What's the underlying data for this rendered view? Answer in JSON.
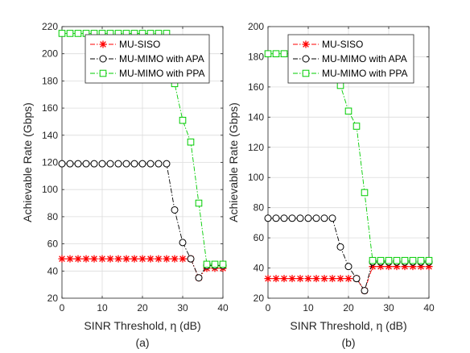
{
  "chart_data": [
    {
      "type": "line",
      "caption": "(a)",
      "xlabel": "SINR Threshold, η (dB)",
      "ylabel": "Achievable Rate (Gbps)",
      "xlim": [
        0,
        40
      ],
      "ylim": [
        20,
        220
      ],
      "xticks": [
        0,
        10,
        20,
        30,
        40
      ],
      "yticks": [
        20,
        40,
        60,
        80,
        100,
        120,
        140,
        160,
        180,
        200,
        220
      ],
      "grid": true,
      "legend_position": "top-right",
      "x": [
        0,
        2,
        4,
        6,
        8,
        10,
        12,
        14,
        16,
        18,
        20,
        22,
        24,
        26,
        28,
        30,
        32,
        34,
        36,
        38,
        40
      ],
      "series": [
        {
          "name": "MU-SISO",
          "color": "#ff0000",
          "marker": "asterisk",
          "dash": "dash-dot",
          "values": [
            49,
            49,
            49,
            49,
            49,
            49,
            49,
            49,
            49,
            49,
            49,
            49,
            49,
            49,
            49,
            49,
            49,
            35,
            42,
            42,
            42
          ]
        },
        {
          "name": "MU-MIMO with APA",
          "color": "#000000",
          "marker": "circle",
          "dash": "dash-dot",
          "values": [
            119,
            119,
            119,
            119,
            119,
            119,
            119,
            119,
            119,
            119,
            119,
            119,
            119,
            119,
            85,
            61,
            49,
            35,
            44,
            44,
            44
          ]
        },
        {
          "name": "MU-MIMO with PPA",
          "color": "#00cc00",
          "marker": "square",
          "dash": "dash-dot",
          "values": [
            215,
            215,
            215,
            215,
            215,
            215,
            215,
            215,
            215,
            215,
            215,
            215,
            215,
            215,
            178,
            151,
            135,
            90,
            45,
            45,
            45
          ]
        }
      ]
    },
    {
      "type": "line",
      "caption": "(b)",
      "xlabel": "SINR Threshold, η (dB)",
      "ylabel": "Achievable Rate (Gbps)",
      "xlim": [
        0,
        40
      ],
      "ylim": [
        20,
        200
      ],
      "xticks": [
        0,
        10,
        20,
        30,
        40
      ],
      "yticks": [
        20,
        40,
        60,
        80,
        100,
        120,
        140,
        160,
        180,
        200
      ],
      "grid": true,
      "legend_position": "top-right",
      "x": [
        0,
        2,
        4,
        6,
        8,
        10,
        12,
        14,
        16,
        18,
        20,
        22,
        24,
        26,
        28,
        30,
        32,
        34,
        36,
        38,
        40
      ],
      "series": [
        {
          "name": "MU-SISO",
          "color": "#ff0000",
          "marker": "asterisk",
          "dash": "dash-dot",
          "values": [
            33,
            33,
            33,
            33,
            33,
            33,
            33,
            33,
            33,
            33,
            33,
            33,
            25,
            41,
            41,
            41,
            41,
            41,
            41,
            41,
            41
          ]
        },
        {
          "name": "MU-MIMO with APA",
          "color": "#000000",
          "marker": "circle",
          "dash": "dash-dot",
          "values": [
            73,
            73,
            73,
            73,
            73,
            73,
            73,
            73,
            73,
            54,
            41,
            33,
            25,
            44,
            44,
            44,
            44,
            44,
            44,
            44,
            44
          ]
        },
        {
          "name": "MU-MIMO with PPA",
          "color": "#00cc00",
          "marker": "square",
          "dash": "dash-dot",
          "values": [
            182,
            182,
            182,
            182,
            182,
            182,
            182,
            182,
            182,
            161,
            144,
            134,
            90,
            45,
            45,
            45,
            45,
            45,
            45,
            45,
            45
          ]
        }
      ]
    }
  ]
}
